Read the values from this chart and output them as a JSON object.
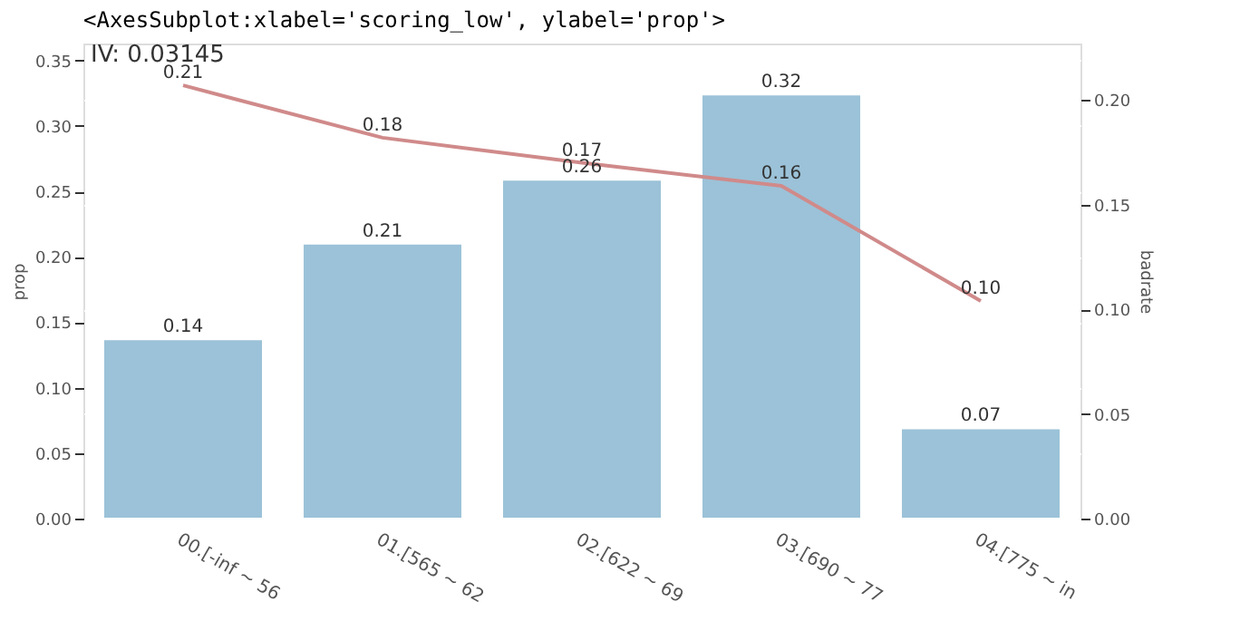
{
  "chart_data": {
    "type": "bar",
    "title": "IV: 0.03145",
    "annotations": [
      "<AxesSubplot:xlabel='scoring_low', ylabel='prop'>"
    ],
    "ylabel": "prop",
    "y2label": "badrate",
    "categories": [
      "00.[-inf ~ 56",
      "01.[565 ~ 62",
      "02.[622 ~ 69",
      "03.[690 ~ 77",
      "04.[775 ~ in"
    ],
    "series": [
      {
        "color": "#9bc2d8",
        "values": [
          0.137,
          0.21,
          0.259,
          0.324,
          0.069
        ],
        "value_labels": [
          "0.14",
          "0.21",
          "0.26",
          "0.32",
          "0.07"
        ]
      },
      {
        "type": "line",
        "axis": "y2",
        "color": "#d08a8a",
        "values": [
          0.207,
          0.182,
          0.17,
          0.159,
          0.104
        ],
        "value_labels": [
          "0.21",
          "0.18",
          "0.17",
          "0.16",
          "0.10"
        ]
      }
    ],
    "ylim": [
      0,
      0.363
    ],
    "yticks": [
      {
        "value": 0,
        "label": "0.00"
      },
      0.05,
      {
        "value": 0.1,
        "label": "0.10"
      },
      0.15,
      {
        "value": 0.2,
        "label": "0.20"
      },
      0.25,
      {
        "value": 0.3,
        "label": "0.30"
      },
      0.35
    ],
    "y2lim": [
      0,
      0.227
    ],
    "y2ticks": [
      {
        "value": 0,
        "label": "0.00"
      },
      0.05,
      {
        "value": 0.1,
        "label": "0.10"
      },
      0.15,
      {
        "value": 0.2,
        "label": "0.20"
      }
    ],
    "grid": "y"
  }
}
